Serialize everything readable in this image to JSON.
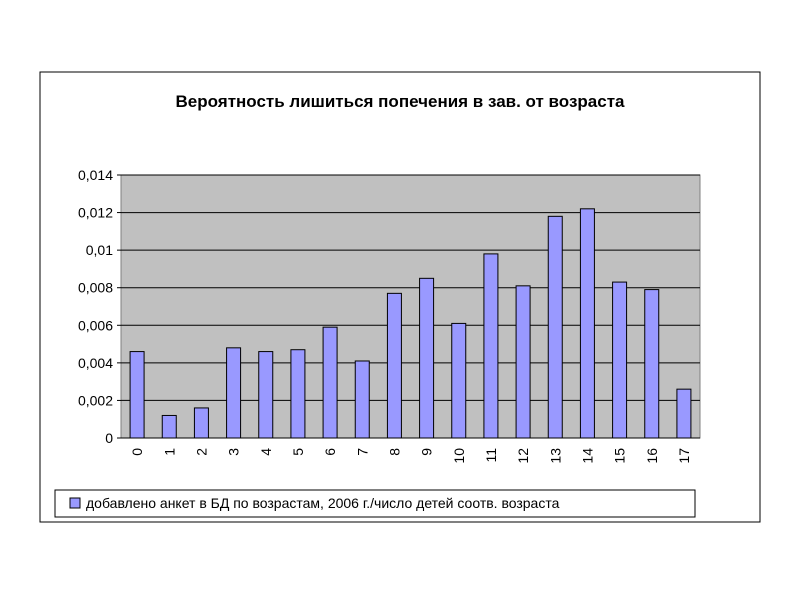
{
  "chart_data": {
    "type": "bar",
    "title": "Вероятность лишиться попечения в зав. от возраста",
    "categories": [
      "0",
      "1",
      "2",
      "3",
      "4",
      "5",
      "6",
      "7",
      "8",
      "9",
      "10",
      "11",
      "12",
      "13",
      "14",
      "15",
      "16",
      "17"
    ],
    "series": [
      {
        "name": "добавлено анкет в БД по возрастам, 2006 г./число детей соотв. возраста",
        "color": "#9999ff",
        "values": [
          0.0046,
          0.0012,
          0.0016,
          0.0048,
          0.0046,
          0.0047,
          0.0059,
          0.0041,
          0.0077,
          0.0085,
          0.0061,
          0.0098,
          0.0081,
          0.0118,
          0.0122,
          0.0083,
          0.0079,
          0.0026
        ]
      }
    ],
    "ylim": [
      0,
      0.014
    ],
    "yticks": [
      0,
      {
        "value": 0.002,
        "label": "0,002"
      },
      {
        "value": 0.004,
        "label": "0,004"
      },
      {
        "value": 0.006,
        "label": "0,006"
      },
      {
        "value": 0.008,
        "label": "0,008"
      },
      {
        "value": 0.01,
        "label": "0,01"
      },
      {
        "value": 0.012,
        "label": "0,012"
      },
      {
        "value": 0.014,
        "label": "0,014"
      }
    ],
    "grid": true,
    "legend": "bottom"
  }
}
